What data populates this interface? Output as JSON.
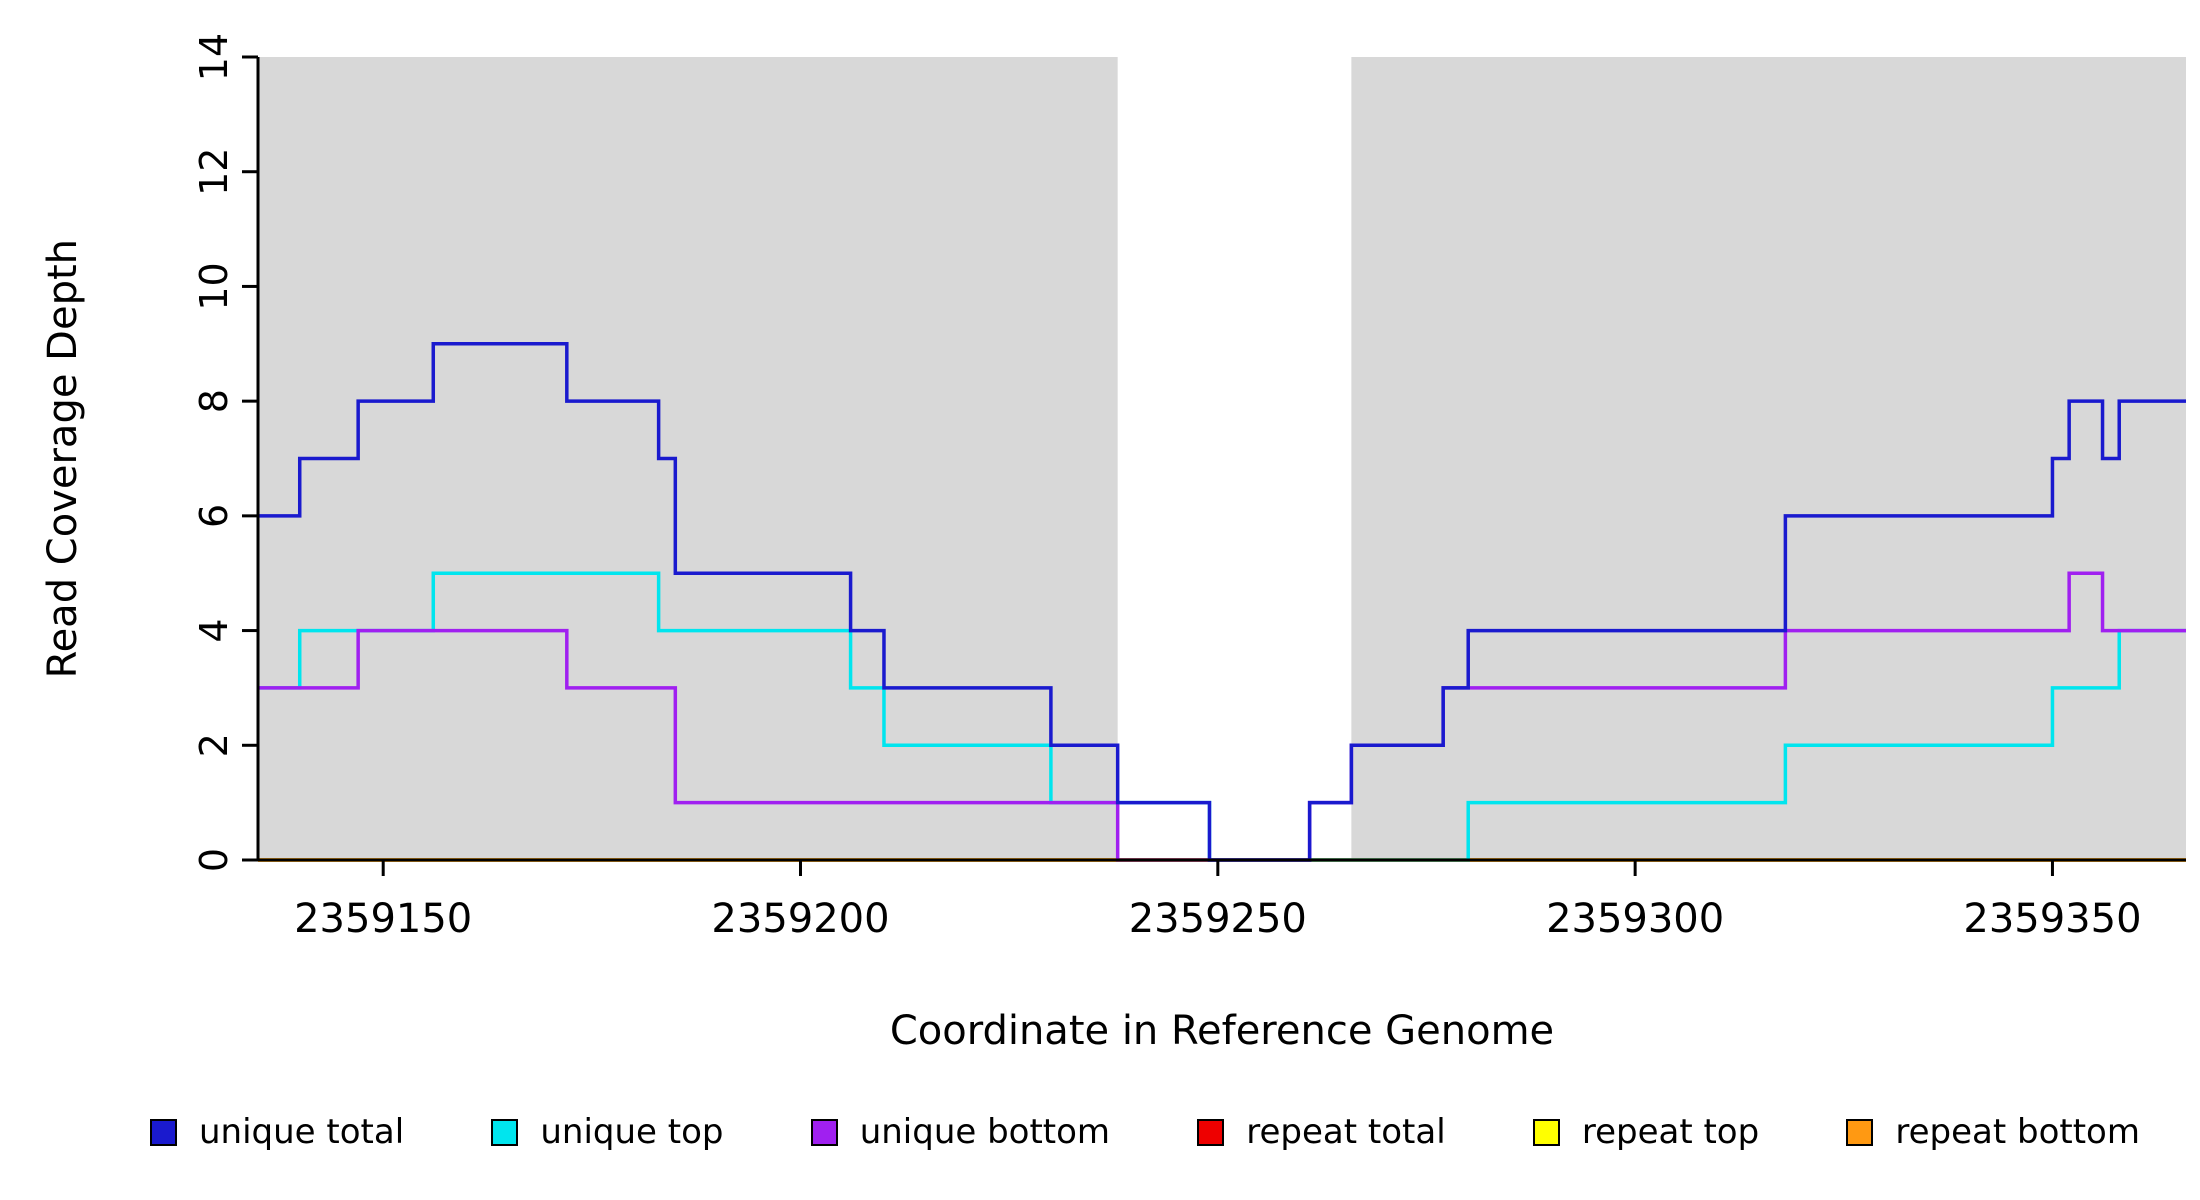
{
  "chart_data": {
    "type": "line",
    "subtype": "step-coverage",
    "title": "",
    "xlabel": "Coordinate in Reference Genome",
    "ylabel": "Read Coverage Depth",
    "xlim": [
      2359135,
      2359366
    ],
    "ylim": [
      0,
      14
    ],
    "xticks": [
      2359150,
      2359200,
      2359250,
      2359300,
      2359350
    ],
    "yticks": [
      0,
      2,
      4,
      6,
      8,
      10,
      12,
      14
    ],
    "grid": false,
    "background_color": "#ffffff",
    "shaded_color": "#d8d8d8",
    "shaded_regions": [
      [
        2359135,
        2359238
      ],
      [
        2359266,
        2359366
      ]
    ],
    "series": [
      {
        "name": "unique total",
        "color": "#1a1ace",
        "z": 6,
        "steps": [
          [
            2359135,
            6
          ],
          [
            2359140,
            7
          ],
          [
            2359147,
            8
          ],
          [
            2359156,
            9
          ],
          [
            2359172,
            8
          ],
          [
            2359183,
            7
          ],
          [
            2359185,
            5
          ],
          [
            2359206,
            4
          ],
          [
            2359210,
            3
          ],
          [
            2359230,
            2
          ],
          [
            2359238,
            1
          ],
          [
            2359249,
            0
          ],
          [
            2359261,
            1
          ],
          [
            2359266,
            2
          ],
          [
            2359277,
            3
          ],
          [
            2359280,
            4
          ],
          [
            2359318,
            6
          ],
          [
            2359350,
            7
          ],
          [
            2359352,
            8
          ],
          [
            2359356,
            7
          ],
          [
            2359358,
            8
          ]
        ]
      },
      {
        "name": "unique top",
        "color": "#00e5ee",
        "z": 4,
        "steps": [
          [
            2359135,
            3
          ],
          [
            2359140,
            4
          ],
          [
            2359156,
            5
          ],
          [
            2359183,
            4
          ],
          [
            2359206,
            3
          ],
          [
            2359210,
            2
          ],
          [
            2359230,
            1
          ],
          [
            2359249,
            0
          ],
          [
            2359280,
            1
          ],
          [
            2359318,
            2
          ],
          [
            2359350,
            3
          ],
          [
            2359358,
            4
          ]
        ]
      },
      {
        "name": "unique bottom",
        "color": "#a020f0",
        "z": 5,
        "steps": [
          [
            2359135,
            3
          ],
          [
            2359147,
            4
          ],
          [
            2359172,
            3
          ],
          [
            2359185,
            1
          ],
          [
            2359238,
            0
          ],
          [
            2359261,
            1
          ],
          [
            2359266,
            2
          ],
          [
            2359277,
            3
          ],
          [
            2359318,
            4
          ],
          [
            2359352,
            5
          ],
          [
            2359356,
            4
          ]
        ]
      },
      {
        "name": "repeat total",
        "color": "#ee0000",
        "z": 1,
        "steps": [
          [
            2359135,
            0
          ]
        ]
      },
      {
        "name": "repeat top",
        "color": "#ffff00",
        "z": 2,
        "steps": [
          [
            2359135,
            0
          ]
        ]
      },
      {
        "name": "repeat bottom",
        "color": "#ff9912",
        "z": 3,
        "steps": [
          [
            2359135,
            0
          ]
        ]
      }
    ],
    "legend": {
      "position": "bottom",
      "entries": [
        {
          "label": "unique total",
          "color": "#1a1ace"
        },
        {
          "label": "unique top",
          "color": "#00e5ee"
        },
        {
          "label": "unique bottom",
          "color": "#a020f0"
        },
        {
          "label": "repeat total",
          "color": "#ee0000"
        },
        {
          "label": "repeat top",
          "color": "#ffff00"
        },
        {
          "label": "repeat bottom",
          "color": "#ff9912"
        }
      ]
    }
  }
}
